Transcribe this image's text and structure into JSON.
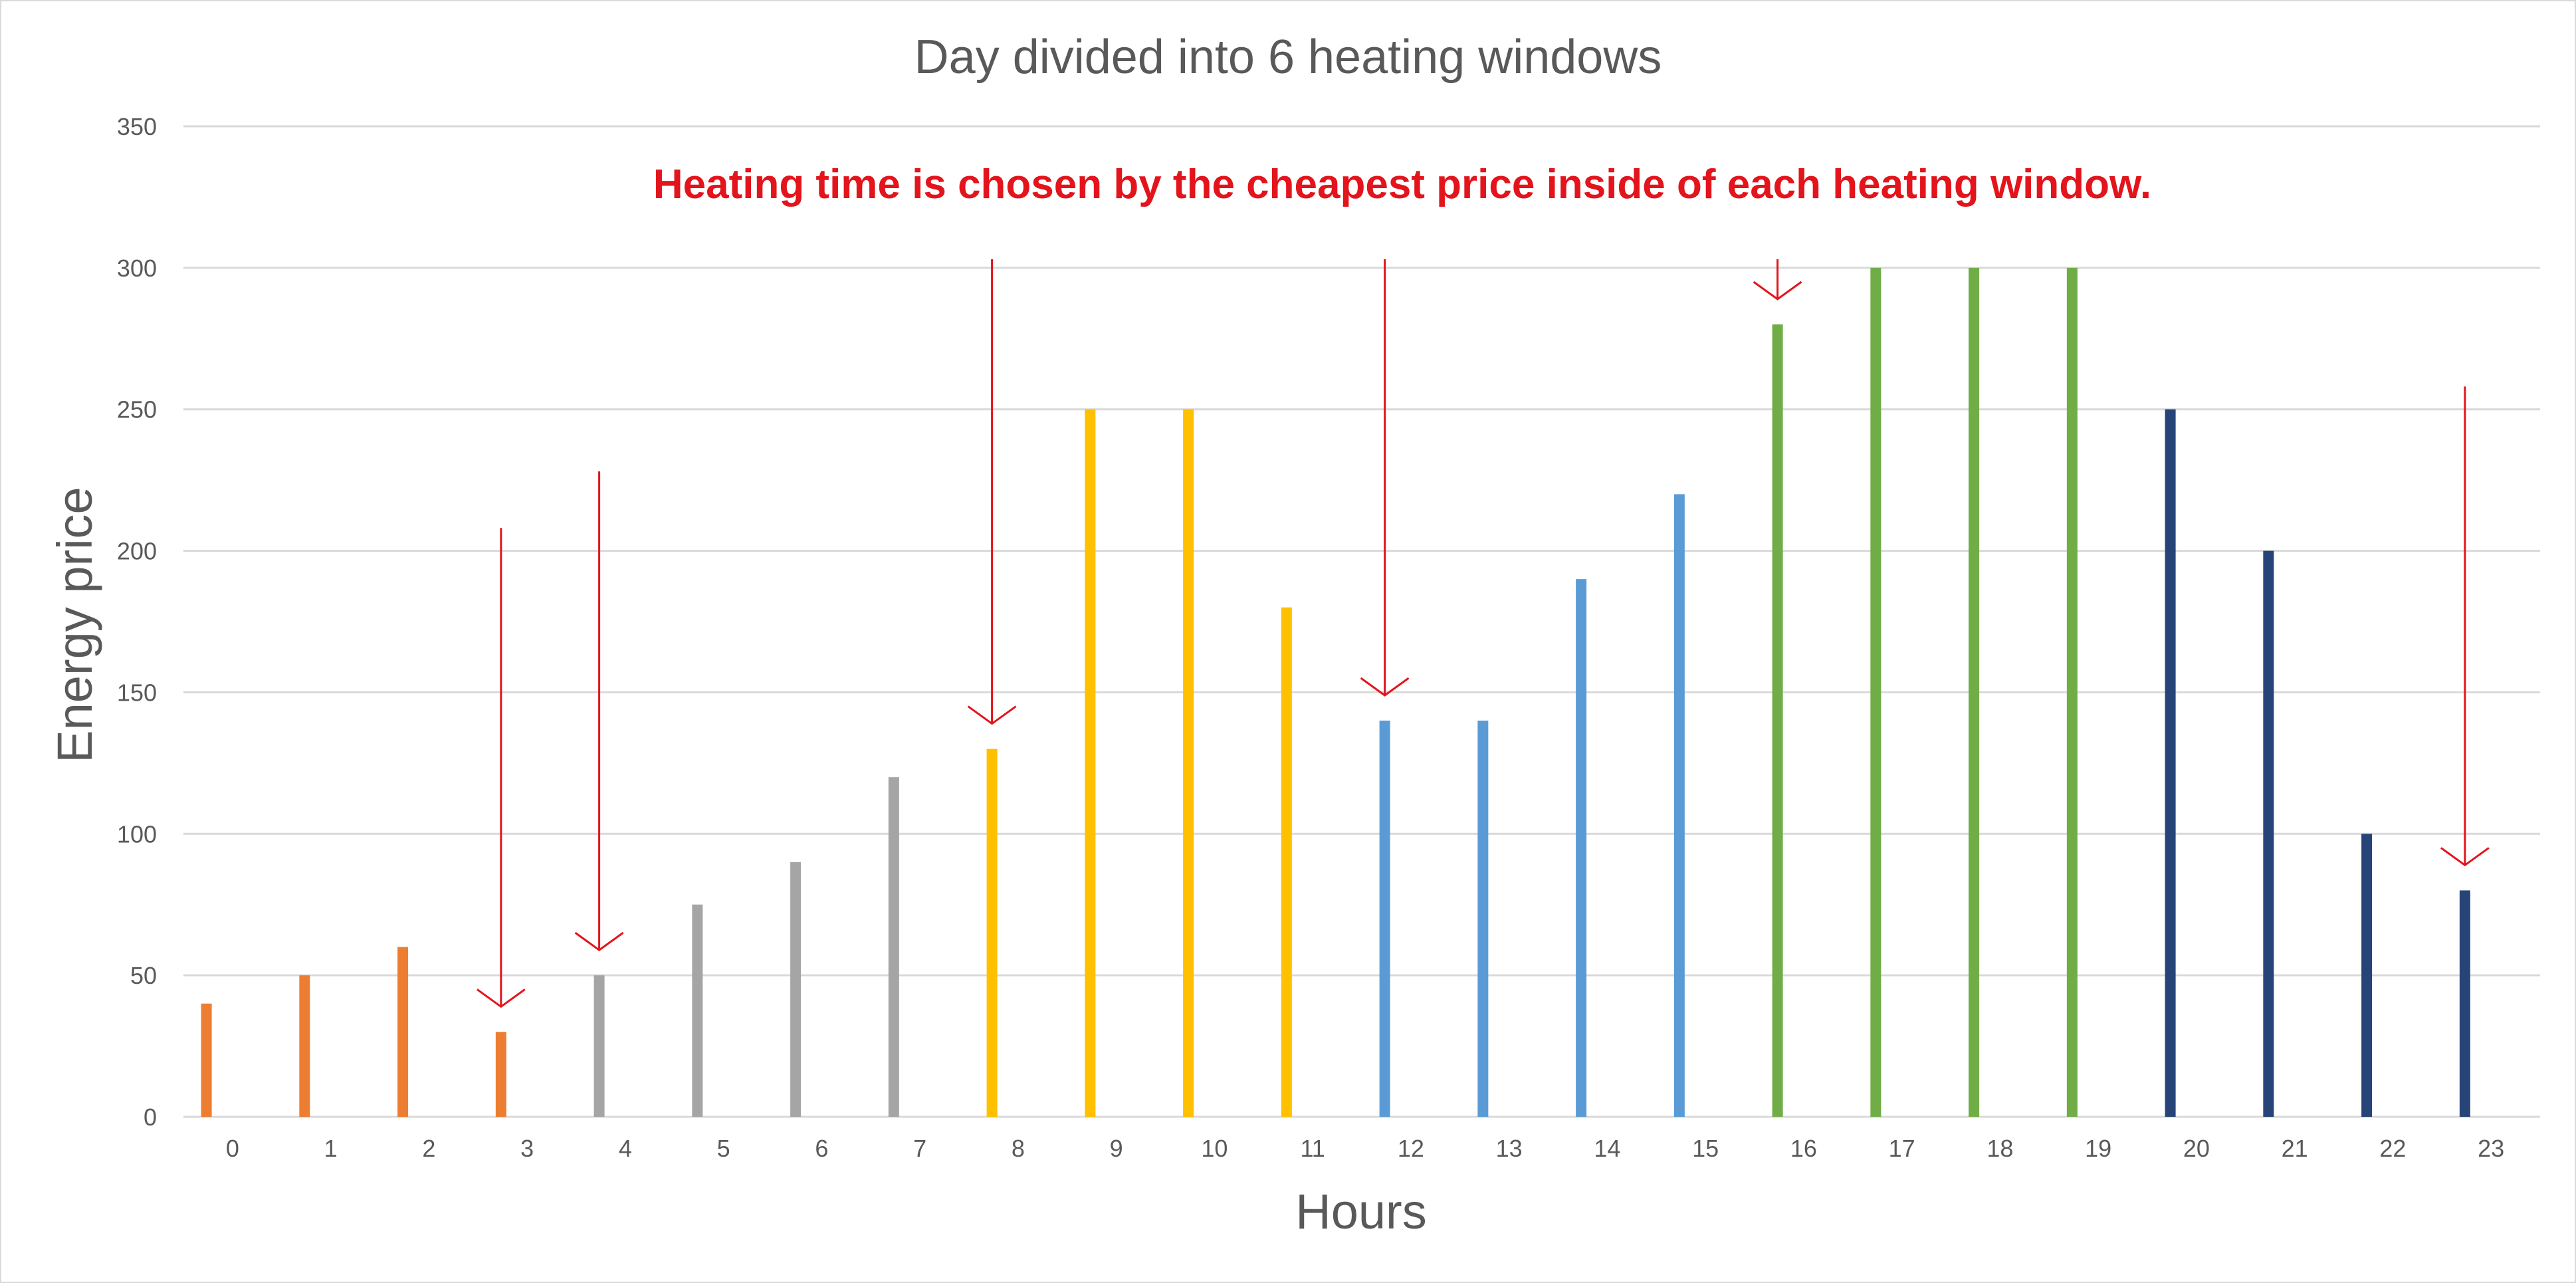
{
  "chart_data": {
    "type": "bar",
    "title": "Day divided into 6 heating windows",
    "xlabel": "Hours",
    "ylabel": "Energy price",
    "annotation": "Heating time is chosen by the cheapest price inside of each heating window.",
    "annotation_color": "#e3141c",
    "ylim": [
      0,
      350
    ],
    "yticks": [
      0,
      50,
      100,
      150,
      200,
      250,
      300,
      350
    ],
    "grid": true,
    "legend": "none",
    "categories": [
      "0",
      "1",
      "2",
      "3",
      "4",
      "5",
      "6",
      "7",
      "8",
      "9",
      "10",
      "11",
      "12",
      "13",
      "14",
      "15",
      "16",
      "17",
      "18",
      "19",
      "20",
      "21",
      "22",
      "23"
    ],
    "series": [
      {
        "color": "#ed7d31",
        "values": [
          40,
          50,
          60,
          30,
          null,
          null,
          null,
          null,
          null,
          null,
          null,
          null,
          null,
          null,
          null,
          null,
          null,
          null,
          null,
          null,
          null,
          null,
          null,
          null
        ]
      },
      {
        "color": "#a5a5a5",
        "values": [
          null,
          null,
          null,
          null,
          50,
          75,
          90,
          120,
          null,
          null,
          null,
          null,
          null,
          null,
          null,
          null,
          null,
          null,
          null,
          null,
          null,
          null,
          null,
          null
        ]
      },
      {
        "color": "#ffc000",
        "values": [
          null,
          null,
          null,
          null,
          null,
          null,
          null,
          null,
          130,
          250,
          250,
          180,
          null,
          null,
          null,
          null,
          null,
          null,
          null,
          null,
          null,
          null,
          null,
          null
        ]
      },
      {
        "color": "#5b9bd5",
        "values": [
          null,
          null,
          null,
          null,
          null,
          null,
          null,
          null,
          null,
          null,
          null,
          null,
          140,
          140,
          190,
          220,
          null,
          null,
          null,
          null,
          null,
          null,
          null,
          null
        ]
      },
      {
        "color": "#70ad47",
        "values": [
          null,
          null,
          null,
          null,
          null,
          null,
          null,
          null,
          null,
          null,
          null,
          null,
          null,
          null,
          null,
          null,
          280,
          300,
          300,
          300,
          null,
          null,
          null,
          null
        ]
      },
      {
        "color": "#264478",
        "values": [
          null,
          null,
          null,
          null,
          null,
          null,
          null,
          null,
          null,
          null,
          null,
          null,
          null,
          null,
          null,
          null,
          null,
          null,
          null,
          null,
          250,
          200,
          100,
          80
        ]
      }
    ],
    "cheapest_markers": [
      {
        "category": "3",
        "value": 30
      },
      {
        "category": "4",
        "value": 50
      },
      {
        "category": "8",
        "value": 130
      },
      {
        "category": "12",
        "value": 140
      },
      {
        "category": "16",
        "value": 280
      },
      {
        "category": "23",
        "value": 80
      }
    ]
  }
}
